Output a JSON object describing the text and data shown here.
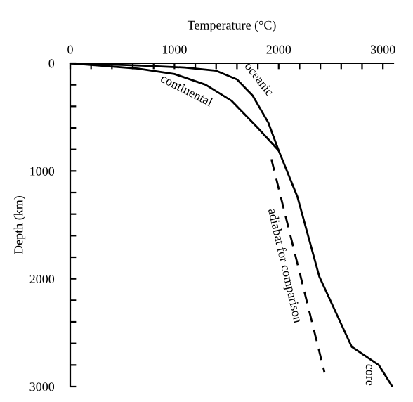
{
  "chart_data": {
    "type": "line",
    "xlabel": "Temperature (°C)",
    "ylabel": "Depth (km)",
    "xlim": [
      0,
      3100
    ],
    "xticks": [
      0,
      {
        "value": 200,
        "label": null
      },
      {
        "value": 400,
        "label": null
      },
      {
        "value": 600,
        "label": null
      },
      {
        "value": 800,
        "label": null
      },
      1000,
      {
        "value": 1200,
        "label": null
      },
      {
        "value": 1400,
        "label": null
      },
      {
        "value": 1600,
        "label": null
      },
      {
        "value": 1800,
        "label": null
      },
      2000,
      {
        "value": 2200,
        "label": null
      },
      {
        "value": 2400,
        "label": null
      },
      {
        "value": 2600,
        "label": null
      },
      {
        "value": 2800,
        "label": null
      },
      3000
    ],
    "ylim": [
      3000,
      0
    ],
    "yticks": [
      0,
      {
        "value": 200,
        "label": null
      },
      {
        "value": 400,
        "label": null
      },
      {
        "value": 600,
        "label": null
      },
      {
        "value": 800,
        "label": null
      },
      1000,
      {
        "value": 1200,
        "label": null
      },
      {
        "value": 1400,
        "label": null
      },
      {
        "value": 1600,
        "label": null
      },
      {
        "value": 1800,
        "label": null
      },
      2000,
      {
        "value": 2200,
        "label": null
      },
      {
        "value": 2400,
        "label": null
      },
      {
        "value": 2600,
        "label": null
      },
      {
        "value": 2800,
        "label": null
      },
      3000
    ],
    "grid": false,
    "legend": false,
    "marker": "none",
    "series": [
      {
        "name": "oceanic",
        "color": "#000000",
        "line_style": "solid",
        "x": [
          0,
          650,
          1100,
          1400,
          1600,
          1750,
          1900,
          2000,
          2180,
          2390,
          2700,
          2960,
          3090
        ],
        "values": [
          0,
          20,
          40,
          70,
          150,
          300,
          550,
          810,
          1240,
          1980,
          2630,
          2800,
          3000
        ]
      },
      {
        "name": "continental",
        "color": "#000000",
        "line_style": "solid",
        "x": [
          0,
          650,
          1000,
          1300,
          1550,
          1800,
          2000
        ],
        "values": [
          0,
          50,
          100,
          200,
          350,
          600,
          810
        ]
      },
      {
        "name": "adiabat for comparison",
        "color": "#000000",
        "line_style": "dashed",
        "x": [
          1930,
          2440
        ],
        "values": [
          890,
          2870
        ]
      }
    ],
    "annotations": [
      "core"
    ]
  }
}
